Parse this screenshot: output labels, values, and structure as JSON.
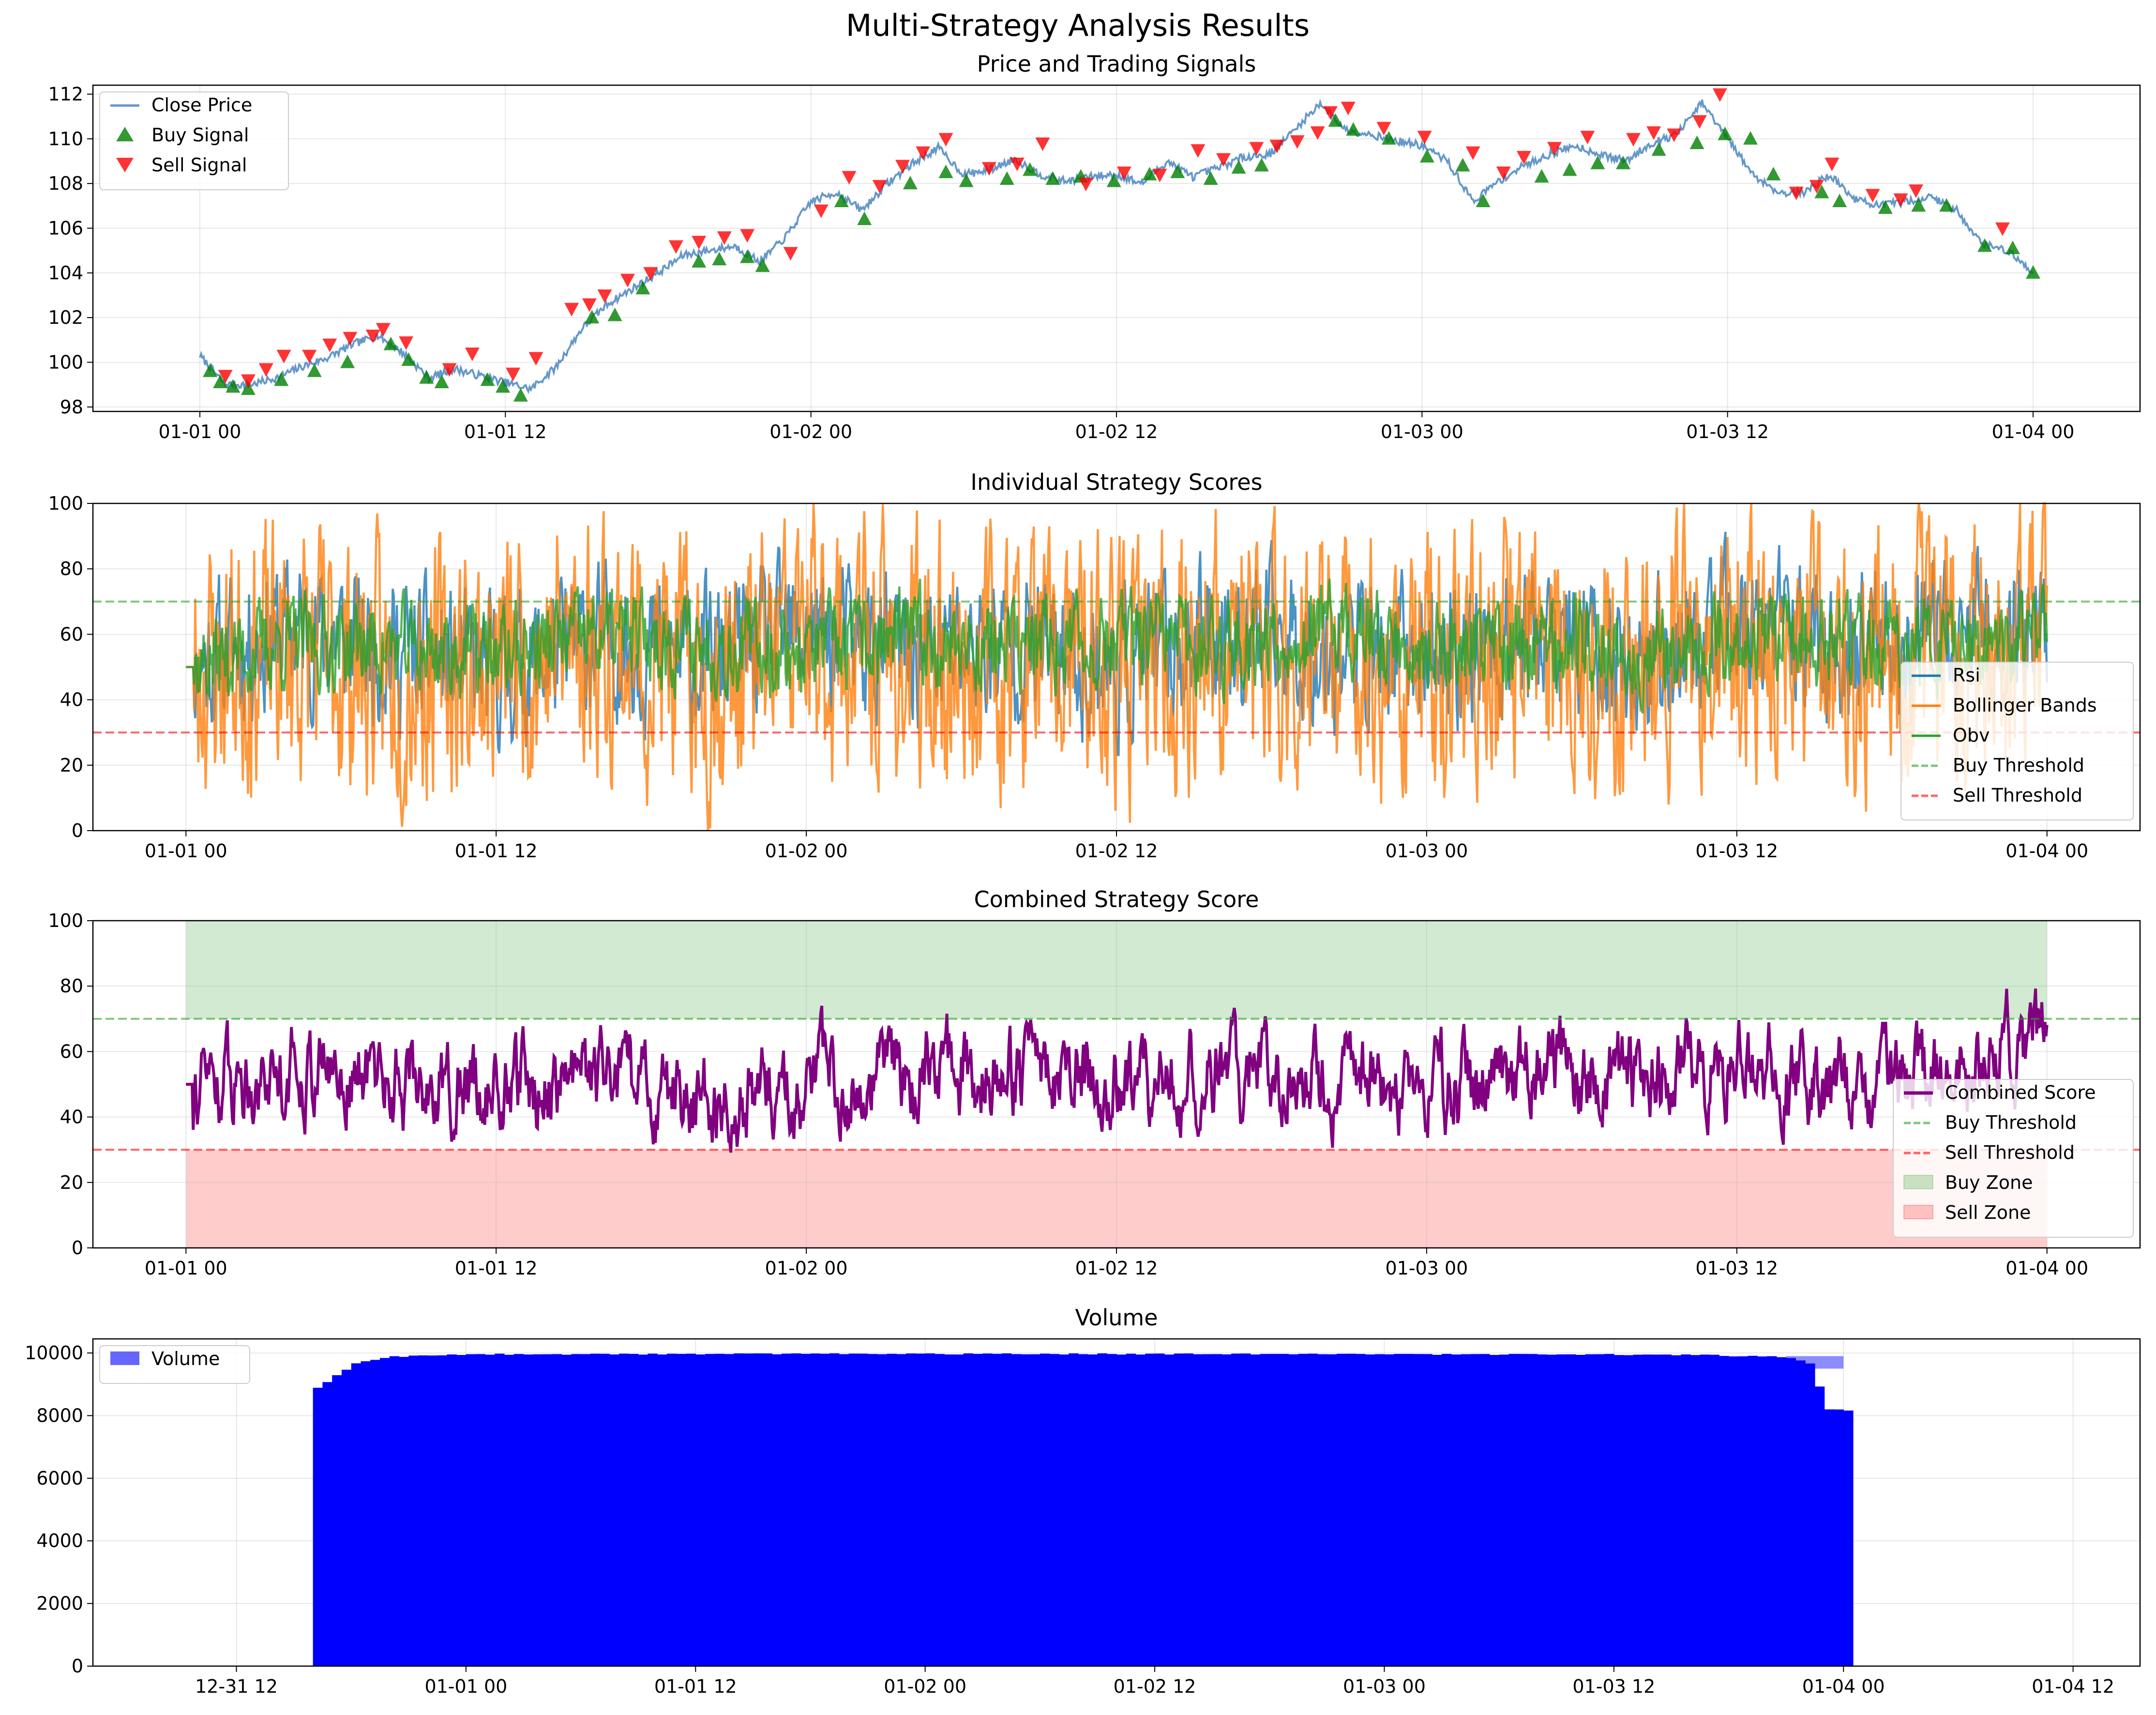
{
  "figure": {
    "suptitle": "Multi-Strategy Analysis Results"
  },
  "colors": {
    "price": "#4a86c0",
    "buy": "#008000",
    "sell": "#ff0000",
    "rsi": "#1f77b4",
    "bollinger": "#ff7f0e",
    "obv": "#2ca02c",
    "combined": "#800080",
    "buy_zone": "#2ca02c",
    "sell_zone": "#ff0000",
    "volume": "#0000ff"
  },
  "chart_data": [
    {
      "type": "line",
      "title": "Price and Trading Signals",
      "xlabel": "",
      "ylabel": "",
      "x_ticks": [
        "01-01 00",
        "01-01 12",
        "01-02 00",
        "01-02 12",
        "01-03 00",
        "01-03 12",
        "01-04 00"
      ],
      "y_ticks": [
        "98",
        "100",
        "102",
        "104",
        "106",
        "108",
        "110",
        "112"
      ],
      "ylim": [
        97.8,
        112.4
      ],
      "xlim_hours": [
        -4.2,
        76.2
      ],
      "grid": true,
      "legend_position": "top-left",
      "legend": [
        "Close Price",
        "Buy Signal",
        "Sell Signal"
      ],
      "series": [
        {
          "name": "Close Price",
          "x_hours": [
            0,
            1,
            2,
            3,
            4,
            5,
            6,
            7,
            8,
            9,
            10,
            11,
            12,
            13,
            14,
            15,
            16,
            17,
            18,
            19,
            20,
            21,
            22,
            23,
            24,
            25,
            26,
            27,
            28,
            29,
            30,
            31,
            32,
            33,
            34,
            35,
            36,
            37,
            38,
            39,
            40,
            41,
            42,
            43,
            44,
            45,
            46,
            47,
            48,
            49,
            50,
            51,
            52,
            53,
            54,
            55,
            56,
            57,
            58,
            59,
            60,
            61,
            62,
            63,
            64,
            65,
            66,
            67,
            68,
            69,
            70,
            71,
            72
          ],
          "values": [
            100.3,
            99.0,
            99.0,
            99.3,
            99.8,
            100.2,
            100.8,
            101.2,
            100.4,
            99.3,
            99.7,
            99.4,
            99.1,
            98.8,
            99.8,
            101.5,
            102.6,
            103.3,
            104.0,
            104.8,
            105.0,
            105.2,
            104.5,
            105.6,
            107.2,
            107.6,
            106.8,
            108.0,
            108.9,
            109.6,
            108.4,
            108.6,
            109.1,
            108.4,
            108.1,
            108.3,
            108.4,
            108.0,
            109.0,
            108.3,
            108.7,
            109.2,
            109.3,
            110.4,
            111.6,
            110.4,
            110.2,
            109.9,
            109.7,
            109.0,
            107.2,
            108.1,
            108.8,
            109.3,
            109.7,
            109.3,
            109.0,
            109.8,
            110.2,
            111.6,
            110.0,
            108.4,
            107.6,
            107.6,
            108.4,
            107.3,
            107.0,
            107.2,
            107.4,
            106.8,
            105.3,
            105.0,
            104.0
          ]
        },
        {
          "name": "Buy Signal",
          "x_hours": [
            0.4,
            0.8,
            1.3,
            1.9,
            3.2,
            4.5,
            5.8,
            7.5,
            8.2,
            8.9,
            9.5,
            11.3,
            11.9,
            12.6,
            15.4,
            16.3,
            17.4,
            19.6,
            20.4,
            21.5,
            22.1,
            25.2,
            26.1,
            27.9,
            29.3,
            30.1,
            31.7,
            32.6,
            33.5,
            34.6,
            35.9,
            37.3,
            38.4,
            39.7,
            40.8,
            41.7,
            44.6,
            45.3,
            46.7,
            48.2,
            49.6,
            50.4,
            52.7,
            53.8,
            54.9,
            55.9,
            57.3,
            58.8,
            59.9,
            60.9,
            61.8,
            63.7,
            64.4,
            66.2,
            67.5,
            68.6,
            70.1,
            71.2,
            72.0
          ],
          "values": [
            99.6,
            99.1,
            98.9,
            98.8,
            99.2,
            99.6,
            100.0,
            100.8,
            100.1,
            99.3,
            99.1,
            99.2,
            98.9,
            98.5,
            102.0,
            102.1,
            103.3,
            104.5,
            104.6,
            104.7,
            104.3,
            107.2,
            106.4,
            108.0,
            108.5,
            108.1,
            108.2,
            108.6,
            108.2,
            108.3,
            108.1,
            108.4,
            108.5,
            108.2,
            108.7,
            108.8,
            110.8,
            110.4,
            110.0,
            109.2,
            108.8,
            107.2,
            108.3,
            108.6,
            108.9,
            108.9,
            109.5,
            109.8,
            110.2,
            110.0,
            108.4,
            107.6,
            107.2,
            106.9,
            107.0,
            107.0,
            105.2,
            105.1,
            104.0
          ]
        },
        {
          "name": "Sell Signal",
          "x_hours": [
            1.0,
            1.9,
            2.6,
            3.3,
            4.3,
            5.1,
            5.9,
            6.8,
            7.2,
            8.1,
            9.8,
            10.7,
            12.3,
            13.2,
            14.6,
            15.3,
            15.9,
            16.8,
            17.7,
            18.7,
            19.6,
            20.6,
            21.5,
            23.2,
            24.4,
            25.5,
            26.7,
            27.6,
            28.4,
            29.3,
            31.0,
            32.1,
            33.1,
            34.8,
            36.3,
            37.7,
            39.2,
            40.2,
            41.5,
            42.3,
            43.1,
            43.9,
            44.4,
            45.1,
            46.5,
            48.1,
            50.0,
            51.2,
            52.0,
            53.2,
            54.5,
            56.3,
            57.1,
            57.9,
            58.9,
            59.7,
            62.7,
            63.5,
            64.1,
            65.7,
            66.8,
            67.4,
            70.8
          ],
          "values": [
            99.4,
            99.2,
            99.7,
            100.3,
            100.3,
            100.8,
            101.1,
            101.2,
            101.5,
            100.9,
            99.7,
            100.4,
            99.5,
            100.2,
            102.4,
            102.6,
            103.0,
            103.7,
            104.0,
            105.2,
            105.4,
            105.6,
            105.7,
            104.9,
            106.8,
            108.3,
            107.9,
            108.8,
            109.4,
            110.0,
            108.7,
            108.9,
            109.8,
            108.0,
            108.5,
            108.4,
            109.5,
            109.1,
            109.6,
            109.7,
            109.9,
            110.3,
            111.2,
            111.4,
            110.5,
            110.1,
            109.4,
            108.5,
            109.2,
            109.6,
            110.1,
            110.0,
            110.3,
            110.2,
            110.8,
            112.0,
            107.6,
            107.9,
            108.9,
            107.5,
            107.3,
            107.7,
            106.0
          ]
        }
      ]
    },
    {
      "type": "line",
      "title": "Individual Strategy Scores",
      "xlabel": "",
      "ylabel": "",
      "x_ticks": [
        "01-01 00",
        "01-01 12",
        "01-02 00",
        "01-02 12",
        "01-03 00",
        "01-03 12",
        "01-04 00"
      ],
      "y_ticks": [
        "0",
        "20",
        "40",
        "60",
        "80",
        "100"
      ],
      "ylim": [
        0,
        100
      ],
      "xlim_hours": [
        -3.6,
        75.6
      ],
      "grid": true,
      "legend_position": "center-right",
      "legend": [
        "Rsi",
        "Bollinger Bands",
        "Obv",
        "Buy Threshold",
        "Sell Threshold"
      ],
      "buy_threshold": 70,
      "sell_threshold": 30,
      "series": [
        {
          "name": "Rsi",
          "x_hours": [
            0,
            4,
            8,
            12,
            16,
            20,
            24,
            28,
            32,
            36,
            40,
            44,
            48,
            52,
            56,
            60,
            64,
            68,
            72
          ],
          "values": [
            50,
            62,
            55,
            48,
            58,
            52,
            60,
            54,
            57,
            49,
            61,
            56,
            53,
            59,
            51,
            62,
            55,
            58,
            64
          ]
        },
        {
          "name": "Bollinger Bands",
          "x_hours": [
            0,
            4,
            8,
            12,
            16,
            20,
            24,
            28,
            32,
            36,
            40,
            44,
            48,
            52,
            56,
            60,
            64,
            68,
            72
          ],
          "values": [
            50,
            55,
            48,
            52,
            60,
            45,
            58,
            50,
            54,
            47,
            56,
            52,
            49,
            57,
            51,
            60,
            46,
            55,
            62
          ]
        },
        {
          "name": "Obv",
          "x_hours": [
            0,
            4,
            8,
            12,
            16,
            20,
            24,
            28,
            32,
            36,
            40,
            44,
            48,
            52,
            56,
            60,
            64,
            68,
            72
          ],
          "values": [
            50,
            58,
            56,
            54,
            60,
            57,
            55,
            59,
            56,
            58,
            57,
            61,
            56,
            58,
            55,
            60,
            57,
            56,
            60
          ]
        }
      ]
    },
    {
      "type": "line",
      "title": "Combined Strategy Score",
      "xlabel": "",
      "ylabel": "",
      "x_ticks": [
        "01-01 00",
        "01-01 12",
        "01-02 00",
        "01-02 12",
        "01-03 00",
        "01-03 12",
        "01-04 00"
      ],
      "y_ticks": [
        "0",
        "20",
        "40",
        "60",
        "80",
        "100"
      ],
      "ylim": [
        0,
        100
      ],
      "xlim_hours": [
        -3.6,
        75.6
      ],
      "grid": true,
      "legend_position": "center-right",
      "legend": [
        "Combined Score",
        "Buy Threshold",
        "Sell Threshold",
        "Buy Zone",
        "Sell Zone"
      ],
      "buy_threshold": 70,
      "sell_threshold": 30,
      "series": [
        {
          "name": "Combined Score",
          "x_hours": [
            0,
            4,
            8,
            12,
            16,
            20,
            24,
            28,
            32,
            36,
            40,
            44,
            48,
            52,
            56,
            60,
            64,
            68,
            72
          ],
          "values": [
            50,
            56,
            52,
            48,
            51,
            45,
            50,
            53,
            55,
            49,
            54,
            52,
            50,
            53,
            51,
            57,
            48,
            55,
            64
          ]
        }
      ]
    },
    {
      "type": "bar",
      "title": "Volume",
      "xlabel": "",
      "ylabel": "",
      "x_ticks": [
        "12-31 12",
        "01-01 00",
        "01-01 12",
        "01-02 00",
        "01-02 12",
        "01-03 00",
        "01-03 12",
        "01-04 00",
        "01-04 12"
      ],
      "y_ticks": [
        "0",
        "2000",
        "4000",
        "6000",
        "8000",
        "10000"
      ],
      "ylim": [
        0,
        10450
      ],
      "grid": true,
      "legend_position": "top-left",
      "legend": [
        "Volume"
      ],
      "series": [
        {
          "name": "Volume",
          "x_hours": [
            -8,
            -6,
            -4,
            0,
            12,
            24,
            36,
            48,
            60,
            64,
            66,
            68,
            69,
            70,
            71
          ],
          "values": [
            8900,
            9700,
            9900,
            9980,
            9990,
            9990,
            9990,
            9980,
            9970,
            9960,
            9930,
            9900,
            9850,
            9700,
            8200
          ]
        }
      ]
    }
  ]
}
